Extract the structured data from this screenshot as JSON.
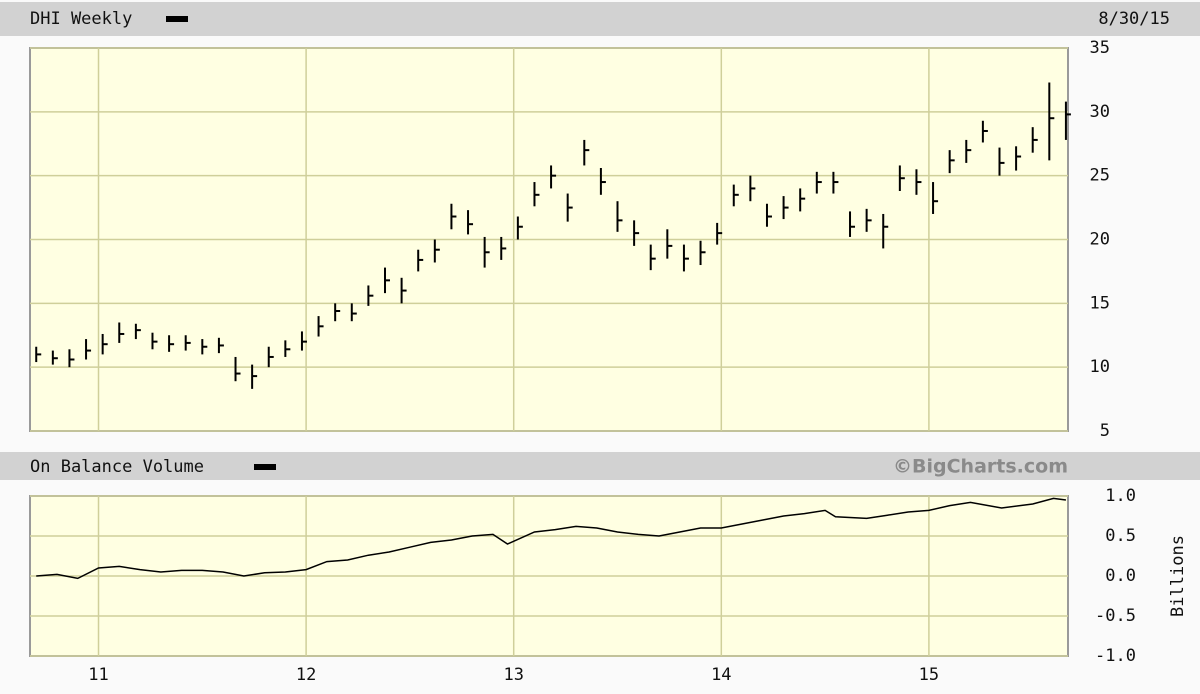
{
  "chart_data": [
    {
      "type": "ohlc",
      "title": "DHI Weekly",
      "date_label": "8/30/15",
      "color": "#000000",
      "xlim": [
        2010.67,
        2015.67
      ],
      "xticks": [
        2011,
        2012,
        2013,
        2014,
        2015
      ],
      "ylim": [
        5,
        35
      ],
      "yticks": [
        5,
        10,
        15,
        20,
        25,
        30,
        35
      ],
      "grid": true,
      "x": [
        2010.7,
        2010.78,
        2010.86,
        2010.94,
        2011.02,
        2011.1,
        2011.18,
        2011.26,
        2011.34,
        2011.42,
        2011.5,
        2011.58,
        2011.66,
        2011.74,
        2011.82,
        2011.9,
        2011.98,
        2012.06,
        2012.14,
        2012.22,
        2012.3,
        2012.38,
        2012.46,
        2012.54,
        2012.62,
        2012.7,
        2012.78,
        2012.86,
        2012.94,
        2013.02,
        2013.1,
        2013.18,
        2013.26,
        2013.34,
        2013.42,
        2013.5,
        2013.58,
        2013.66,
        2013.74,
        2013.82,
        2013.9,
        2013.98,
        2014.06,
        2014.14,
        2014.22,
        2014.3,
        2014.38,
        2014.46,
        2014.54,
        2014.62,
        2014.7,
        2014.78,
        2014.86,
        2014.94,
        2015.02,
        2015.1,
        2015.18,
        2015.26,
        2015.34,
        2015.42,
        2015.5,
        2015.58,
        2015.66
      ],
      "close": [
        11.0,
        10.7,
        10.6,
        11.3,
        11.8,
        12.6,
        12.9,
        12.0,
        11.8,
        11.9,
        11.6,
        11.7,
        9.5,
        9.3,
        10.8,
        11.4,
        12.0,
        13.2,
        14.4,
        14.2,
        15.6,
        16.8,
        16.0,
        18.4,
        19.2,
        21.8,
        21.2,
        19.0,
        19.3,
        21.0,
        23.5,
        25.0,
        22.5,
        27.0,
        24.5,
        21.5,
        20.5,
        18.5,
        19.5,
        18.5,
        19.0,
        20.5,
        23.5,
        24.0,
        21.8,
        22.5,
        23.2,
        24.5,
        24.5,
        21.0,
        21.5,
        21.0,
        24.8,
        24.5,
        23.0,
        26.2,
        27.0,
        28.5,
        26.0,
        26.5,
        27.8,
        29.5,
        29.8
      ],
      "high": [
        11.6,
        11.3,
        11.4,
        12.2,
        12.6,
        13.5,
        13.4,
        12.7,
        12.5,
        12.5,
        12.2,
        12.3,
        10.8,
        10.2,
        11.6,
        12.1,
        12.8,
        14.0,
        15.0,
        15.0,
        16.4,
        17.8,
        17.0,
        19.2,
        20.0,
        22.8,
        22.3,
        20.2,
        20.2,
        21.8,
        24.5,
        25.8,
        23.6,
        27.8,
        25.6,
        23.0,
        21.5,
        19.6,
        20.8,
        19.6,
        19.9,
        21.3,
        24.3,
        25.0,
        22.8,
        23.4,
        24.0,
        25.3,
        25.3,
        22.2,
        22.4,
        22.0,
        25.8,
        25.5,
        24.5,
        27.0,
        27.8,
        29.3,
        27.2,
        27.3,
        28.8,
        32.3,
        30.8
      ],
      "low": [
        10.4,
        10.2,
        10.0,
        10.6,
        11.0,
        11.9,
        12.2,
        11.4,
        11.2,
        11.3,
        11.0,
        11.1,
        8.9,
        8.3,
        10.0,
        10.8,
        11.3,
        12.4,
        13.6,
        13.6,
        14.8,
        15.8,
        15.0,
        17.5,
        18.2,
        20.8,
        20.4,
        17.8,
        18.4,
        20.0,
        22.6,
        24.0,
        21.4,
        25.8,
        23.5,
        20.6,
        19.5,
        17.6,
        18.5,
        17.5,
        18.0,
        19.6,
        22.6,
        23.0,
        21.0,
        21.6,
        22.2,
        23.6,
        23.6,
        20.2,
        20.6,
        19.3,
        23.8,
        23.5,
        22.0,
        25.2,
        26.0,
        27.6,
        25.0,
        25.4,
        26.8,
        26.2,
        27.8
      ]
    },
    {
      "type": "line",
      "title": "On Balance Volume",
      "source": "©BigCharts.com",
      "y_axis_label": "Billions",
      "color": "#000000",
      "xlim": [
        2010.67,
        2015.67
      ],
      "xticks": [
        {
          "value": 2011,
          "label": "11"
        },
        {
          "value": 2012,
          "label": "12"
        },
        {
          "value": 2013,
          "label": "13"
        },
        {
          "value": 2014,
          "label": "14"
        },
        {
          "value": 2015,
          "label": "15"
        }
      ],
      "ylim": [
        -1,
        1
      ],
      "yticks": [
        {
          "value": 1,
          "label": "1.0"
        },
        {
          "value": 0.5,
          "label": "0.5"
        },
        {
          "value": 0,
          "label": "0.0"
        },
        {
          "value": -0.5,
          "label": "-0.5"
        },
        {
          "value": -1,
          "label": "-1.0"
        }
      ],
      "grid": true,
      "x": [
        2010.7,
        2010.8,
        2010.9,
        2011.0,
        2011.1,
        2011.2,
        2011.3,
        2011.4,
        2011.5,
        2011.6,
        2011.7,
        2011.8,
        2011.9,
        2012.0,
        2012.1,
        2012.2,
        2012.3,
        2012.4,
        2012.5,
        2012.6,
        2012.7,
        2012.8,
        2012.9,
        2012.97,
        2013.1,
        2013.2,
        2013.3,
        2013.4,
        2013.5,
        2013.6,
        2013.7,
        2013.8,
        2013.9,
        2014.0,
        2014.1,
        2014.2,
        2014.3,
        2014.4,
        2014.5,
        2014.55,
        2014.7,
        2014.8,
        2014.9,
        2015.0,
        2015.1,
        2015.2,
        2015.35,
        2015.5,
        2015.6,
        2015.66
      ],
      "values": [
        0.0,
        0.02,
        -0.03,
        0.1,
        0.12,
        0.08,
        0.05,
        0.07,
        0.07,
        0.05,
        0.0,
        0.04,
        0.05,
        0.08,
        0.18,
        0.2,
        0.26,
        0.3,
        0.36,
        0.42,
        0.45,
        0.5,
        0.52,
        0.4,
        0.55,
        0.58,
        0.62,
        0.6,
        0.55,
        0.52,
        0.5,
        0.55,
        0.6,
        0.6,
        0.65,
        0.7,
        0.75,
        0.78,
        0.82,
        0.74,
        0.72,
        0.76,
        0.8,
        0.82,
        0.88,
        0.92,
        0.85,
        0.9,
        0.97,
        0.95
      ]
    }
  ]
}
